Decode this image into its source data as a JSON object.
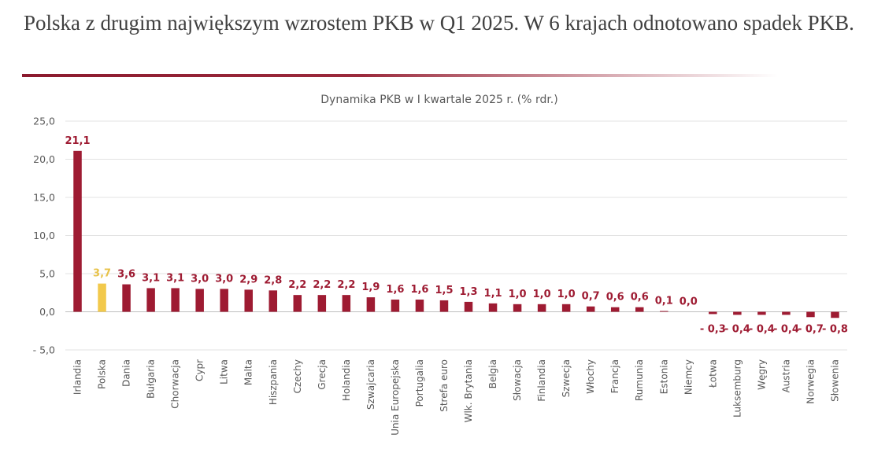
{
  "headline": "Polska z drugim największym wzrostem PKB w Q1 2025. W 6 krajach odnotowano spadek PKB.",
  "colors": {
    "bar": "#9e1b32",
    "highlight": "#f2c94c",
    "label": "#9e1b32",
    "highlight_label": "#e8c34a",
    "accent_line": "#8b1a2e"
  },
  "chart_data": {
    "type": "bar",
    "title": "Dynamika PKB w I kwartale 2025 r. (% rdr.)",
    "xlabel": "",
    "ylabel": "",
    "ylim": [
      -5,
      25
    ],
    "yticks": [
      25,
      20,
      15,
      10,
      5,
      0,
      -5
    ],
    "ytick_labels": [
      "25,0",
      "20,0",
      "15,0",
      "10,0",
      "5,0",
      "0,0",
      "- 5,0"
    ],
    "grid": true,
    "highlight_index": 1,
    "categories": [
      "Irlandia",
      "Polska",
      "Dania",
      "Bułgaria",
      "Chorwacja",
      "Cypr",
      "Litwa",
      "Malta",
      "Hiszpania",
      "Czechy",
      "Grecja",
      "Holandia",
      "Szwajcaria",
      "Unia Europejska",
      "Portugalia",
      "Strefa euro",
      "Wlk. Brytania",
      "Belgia",
      "Słowacja",
      "Finlandia",
      "Szwecja",
      "Włochy",
      "Francja",
      "Rumunia",
      "Estonia",
      "Niemcy",
      "Łotwa",
      "Luksemburg",
      "Węgry",
      "Austria",
      "Norwegia",
      "Słowenia"
    ],
    "values": [
      21.1,
      3.7,
      3.6,
      3.1,
      3.1,
      3.0,
      3.0,
      2.9,
      2.8,
      2.2,
      2.2,
      2.2,
      1.9,
      1.6,
      1.6,
      1.5,
      1.3,
      1.1,
      1.0,
      1.0,
      1.0,
      0.7,
      0.6,
      0.6,
      0.1,
      0.0,
      -0.3,
      -0.4,
      -0.4,
      -0.4,
      -0.7,
      -0.8
    ],
    "data_labels": [
      "21,1",
      "3,7",
      "3,6",
      "3,1",
      "3,1",
      "3,0",
      "3,0",
      "2,9",
      "2,8",
      "2,2",
      "2,2",
      "2,2",
      "1,9",
      "1,6",
      "1,6",
      "1,5",
      "1,3",
      "1,1",
      "1,0",
      "1,0",
      "1,0",
      "0,7",
      "0,6",
      "0,6",
      "0,1",
      "0,0",
      "- 0,3",
      "- 0,4",
      "- 0,4",
      "- 0,4",
      "- 0,7",
      "- 0,8"
    ]
  }
}
